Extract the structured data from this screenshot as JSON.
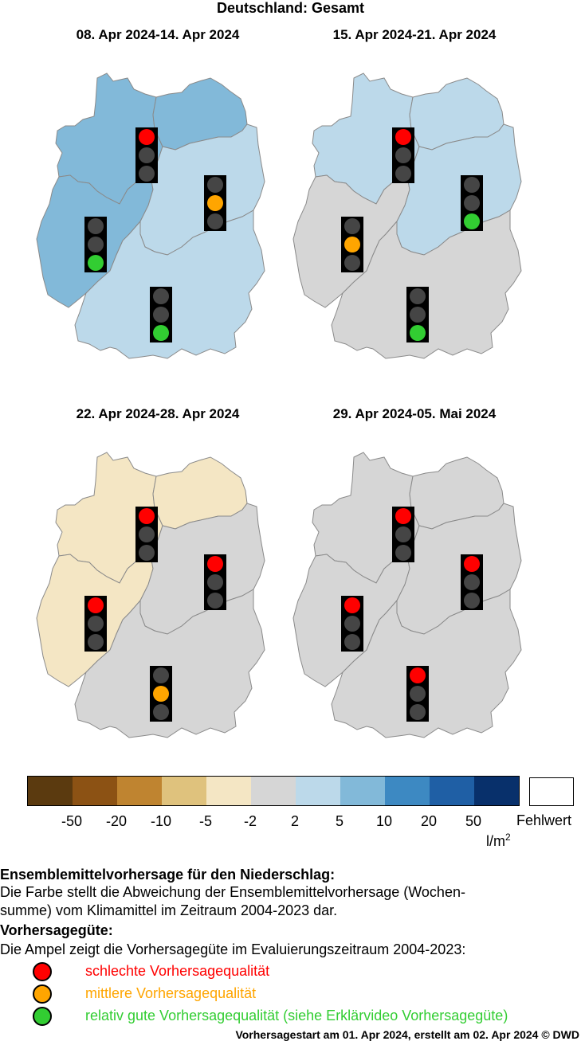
{
  "title": "Deutschland: Gesamt",
  "panels": [
    {
      "period": "08. Apr 2024-14. Apr 2024",
      "regions": {
        "nw": "#82b9d9",
        "ne": "#82b9d9",
        "west": "#82b9d9",
        "east": "#bcd9ea",
        "south": "#bcd9ea"
      },
      "lights": {
        "nw": "red",
        "east": "orange",
        "west": "green",
        "south": "green"
      }
    },
    {
      "period": "15. Apr 2024-21. Apr 2024",
      "regions": {
        "nw": "#bcd9ea",
        "ne": "#bcd9ea",
        "west": "#d6d6d6",
        "east": "#bcd9ea",
        "south": "#d6d6d6"
      },
      "lights": {
        "nw": "red",
        "east": "green",
        "west": "orange",
        "south": "green"
      }
    },
    {
      "period": "22. Apr 2024-28. Apr 2024",
      "regions": {
        "nw": "#f4e6c4",
        "ne": "#f4e6c4",
        "west": "#f4e6c4",
        "east": "#d6d6d6",
        "south": "#d6d6d6"
      },
      "lights": {
        "nw": "red",
        "east": "red",
        "west": "red",
        "south": "orange"
      }
    },
    {
      "period": "29. Apr 2024-05. Mai 2024",
      "regions": {
        "nw": "#d6d6d6",
        "ne": "#d6d6d6",
        "west": "#d6d6d6",
        "east": "#d6d6d6",
        "south": "#d6d6d6"
      },
      "lights": {
        "nw": "red",
        "east": "red",
        "west": "red",
        "south": "red"
      }
    }
  ],
  "colorbar": {
    "colors": [
      "#5b3a0f",
      "#8c5214",
      "#bf8430",
      "#dfc27d",
      "#f4e6c4",
      "#d6d6d6",
      "#bcd9ea",
      "#82b9d9",
      "#3d89c2",
      "#1f5fa5",
      "#08306b"
    ],
    "ticks": [
      "-50",
      "-20",
      "-10",
      "-5",
      "-2",
      "2",
      "5",
      "10",
      "20",
      "50"
    ],
    "unit": "l/m",
    "unit_sup": "2",
    "missing_label": "Fehlwert"
  },
  "description": {
    "heading": "Ensemblemittelvorhersage für den Niederschlag:",
    "line1": "Die Farbe stellt die Abweichung der Ensemblemittelvorhersage (Wochen-",
    "line2": "summe) vom Klimamittel im Zeitraum 2004-2023 dar."
  },
  "quality": {
    "heading": "Vorhersagegüte:",
    "text": "Die Ampel zeigt die Vorhersagegüte im Evaluierungszeitraum 2004-2023:",
    "legend": [
      {
        "label": "schlechte Vorhersagequalität",
        "color": "#ff0000"
      },
      {
        "label": "mittlere Vorhersagequalität",
        "color": "#ffa500"
      },
      {
        "label": "relativ gute Vorhersagequalität (siehe Erklärvideo Vorhersagegüte)",
        "color": "#32cd32"
      }
    ]
  },
  "footer": "Vorhersagestart am 01. Apr 2024, erstellt am 02. Apr 2024 © DWD"
}
